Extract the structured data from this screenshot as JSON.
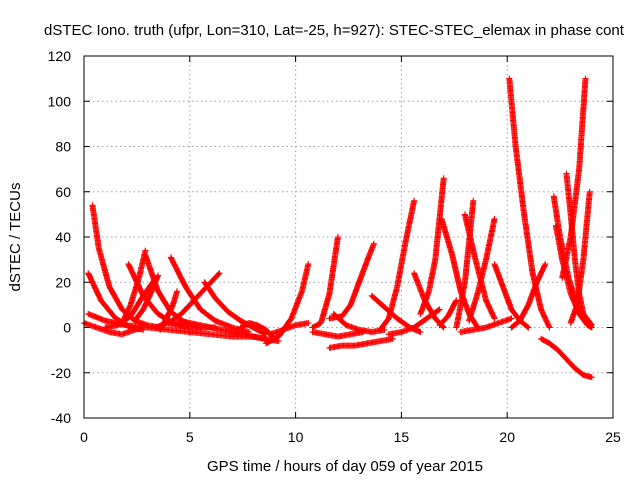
{
  "chart_data": {
    "type": "scatter",
    "title": "dSTEC Iono. truth (ufpr, Lon=310, Lat=-25, h=927): STEC-STEC_elemax in phase cont",
    "xlabel": "GPS time / hours of day 059 of year 2015",
    "ylabel": "dSTEC  / TECUs",
    "xlim": [
      0,
      25
    ],
    "ylim": [
      -40,
      120
    ],
    "xticks": [
      0,
      5,
      10,
      15,
      20,
      25
    ],
    "yticks": [
      -40,
      -20,
      0,
      20,
      40,
      60,
      80,
      100,
      120
    ],
    "grid": true,
    "marker": "plus",
    "color": "#ff0000",
    "series": [
      {
        "x": [
          0.0,
          0.6,
          1.2,
          1.8,
          2.4,
          2.8
        ],
        "y": [
          2,
          0,
          -2,
          -3,
          -1,
          0
        ]
      },
      {
        "x": [
          0.2,
          0.8,
          1.5,
          2.2,
          2.8
        ],
        "y": [
          24,
          12,
          4,
          0,
          -1
        ]
      },
      {
        "x": [
          0.4,
          0.7,
          1.2,
          1.8,
          2.4,
          3.0,
          3.6
        ],
        "y": [
          54,
          35,
          18,
          8,
          3,
          1,
          0
        ]
      },
      {
        "x": [
          0.2,
          1.0,
          2.0,
          3.0,
          4.0,
          5.0
        ],
        "y": [
          6,
          3,
          1,
          0,
          -1,
          -2
        ]
      },
      {
        "x": [
          1.0,
          1.6,
          2.2,
          2.8,
          3.4
        ],
        "y": [
          0,
          1,
          5,
          14,
          22
        ]
      },
      {
        "x": [
          2.1,
          2.8,
          3.5,
          4.2,
          5.0
        ],
        "y": [
          28,
          14,
          6,
          2,
          0
        ]
      },
      {
        "x": [
          1.8,
          2.2,
          2.6,
          2.9
        ],
        "y": [
          2,
          10,
          22,
          34
        ]
      },
      {
        "x": [
          2.9,
          3.5,
          4.1,
          4.8,
          5.5
        ],
        "y": [
          32,
          16,
          7,
          2,
          0
        ]
      },
      {
        "x": [
          2.4,
          2.8,
          3.2,
          3.5
        ],
        "y": [
          3,
          8,
          16,
          23
        ]
      },
      {
        "x": [
          3.4,
          3.9,
          4.5,
          5.2,
          5.8,
          6.2
        ],
        "y": [
          0,
          2,
          1,
          0,
          0,
          0
        ]
      },
      {
        "x": [
          3.6,
          3.9,
          4.2,
          4.4
        ],
        "y": [
          -1,
          4,
          10,
          16
        ]
      },
      {
        "x": [
          4.1,
          4.8,
          5.5,
          6.2,
          7.0,
          7.8
        ],
        "y": [
          31,
          18,
          8,
          3,
          0,
          -2
        ]
      },
      {
        "x": [
          4.0,
          4.6,
          5.2,
          5.6,
          6.0,
          6.4
        ],
        "y": [
          2,
          6,
          12,
          16,
          20,
          24
        ]
      },
      {
        "x": [
          5.7,
          6.2,
          6.8,
          7.4,
          8.0,
          8.6
        ],
        "y": [
          20,
          13,
          7,
          3,
          0,
          -3
        ]
      },
      {
        "x": [
          4.5,
          5.5,
          6.5,
          7.5,
          8.5,
          9.2
        ],
        "y": [
          3,
          1,
          -1,
          -3,
          -5,
          -6
        ]
      },
      {
        "x": [
          5.0,
          6.0,
          7.0,
          8.0,
          8.6
        ],
        "y": [
          -2,
          -3,
          -4,
          -4,
          -5
        ]
      },
      {
        "x": [
          7.4,
          7.8,
          8.2,
          8.6,
          8.9
        ],
        "y": [
          0,
          2,
          1,
          -1,
          -4
        ]
      },
      {
        "x": [
          8.6,
          9.2,
          9.8,
          10.3,
          10.6
        ],
        "y": [
          -7,
          -4,
          4,
          16,
          28
        ]
      },
      {
        "x": [
          8.8,
          9.4,
          10.0,
          10.6
        ],
        "y": [
          -3,
          -1,
          1,
          2
        ]
      },
      {
        "x": [
          10.8,
          11.2,
          11.6,
          12.0
        ],
        "y": [
          0,
          2,
          15,
          40
        ]
      },
      {
        "x": [
          10.8,
          11.4,
          12.0,
          12.6,
          13.2
        ],
        "y": [
          -2,
          -3,
          -4,
          -3,
          -2
        ]
      },
      {
        "x": [
          11.6,
          12.2,
          12.8,
          13.4,
          14.0,
          14.6
        ],
        "y": [
          -9,
          -8,
          -8,
          -7,
          -6,
          -5
        ]
      },
      {
        "x": [
          11.6,
          12.2,
          12.6,
          13.0,
          13.4,
          13.7
        ],
        "y": [
          4,
          5,
          10,
          20,
          30,
          37
        ]
      },
      {
        "x": [
          11.8,
          12.4,
          13.0,
          13.6,
          14.2
        ],
        "y": [
          6,
          1,
          -1,
          -2,
          -1
        ]
      },
      {
        "x": [
          13.6,
          14.2,
          14.8,
          15.4,
          15.9
        ],
        "y": [
          14,
          9,
          4,
          0,
          -2
        ]
      },
      {
        "x": [
          14.0,
          14.4,
          14.8,
          15.2,
          15.6
        ],
        "y": [
          -1,
          4,
          18,
          38,
          56
        ]
      },
      {
        "x": [
          14.4,
          15.0,
          15.6,
          16.2,
          16.8
        ],
        "y": [
          -3,
          -2,
          0,
          4,
          8
        ]
      },
      {
        "x": [
          15.6,
          16.1,
          16.6,
          17.0
        ],
        "y": [
          24,
          12,
          4,
          0
        ]
      },
      {
        "x": [
          15.9,
          16.3,
          16.6,
          17.0
        ],
        "y": [
          6,
          16,
          30,
          66
        ]
      },
      {
        "x": [
          16.9,
          17.4,
          17.8,
          18.2,
          18.6
        ],
        "y": [
          48,
          32,
          16,
          6,
          0
        ]
      },
      {
        "x": [
          16.8,
          17.2,
          17.6
        ],
        "y": [
          1,
          5,
          12
        ]
      },
      {
        "x": [
          17.6,
          18.0,
          18.4
        ],
        "y": [
          0,
          20,
          56
        ]
      },
      {
        "x": [
          18.0,
          18.5,
          19.0,
          19.4
        ],
        "y": [
          50,
          30,
          12,
          4
        ]
      },
      {
        "x": [
          17.8,
          18.4,
          19.0,
          19.6,
          20.2
        ],
        "y": [
          -2,
          -1,
          0,
          2,
          4
        ]
      },
      {
        "x": [
          18.2,
          18.6,
          19.0,
          19.4
        ],
        "y": [
          3,
          15,
          30,
          48
        ]
      },
      {
        "x": [
          19.4,
          19.8,
          20.2,
          20.6,
          21.0
        ],
        "y": [
          28,
          18,
          8,
          3,
          0
        ]
      },
      {
        "x": [
          20.1,
          20.4,
          20.8,
          21.2,
          21.6,
          22.0
        ],
        "y": [
          110,
          80,
          50,
          24,
          8,
          0
        ]
      },
      {
        "x": [
          20.2,
          20.6,
          21.0,
          21.4,
          21.8
        ],
        "y": [
          0,
          3,
          10,
          20,
          28
        ]
      },
      {
        "x": [
          21.6,
          22.0,
          22.4,
          22.8,
          23.2,
          23.6,
          24.0
        ],
        "y": [
          -5,
          -7,
          -10,
          -14,
          -18,
          -21,
          -22
        ]
      },
      {
        "x": [
          22.2,
          22.5,
          22.9,
          23.3,
          23.7,
          24.0
        ],
        "y": [
          58,
          40,
          22,
          10,
          3,
          0
        ]
      },
      {
        "x": [
          22.3,
          22.6,
          23.0,
          23.4,
          23.8,
          24.0
        ],
        "y": [
          45,
          30,
          15,
          6,
          1,
          0
        ]
      },
      {
        "x": [
          22.8,
          23.0,
          23.2,
          23.4,
          23.6,
          24.0
        ],
        "y": [
          68,
          50,
          30,
          15,
          6,
          1
        ]
      },
      {
        "x": [
          22.6,
          23.0,
          23.4,
          23.7
        ],
        "y": [
          22,
          40,
          70,
          110
        ]
      },
      {
        "x": [
          23.0,
          23.3,
          23.6,
          23.9
        ],
        "y": [
          2,
          10,
          30,
          60
        ]
      }
    ]
  }
}
